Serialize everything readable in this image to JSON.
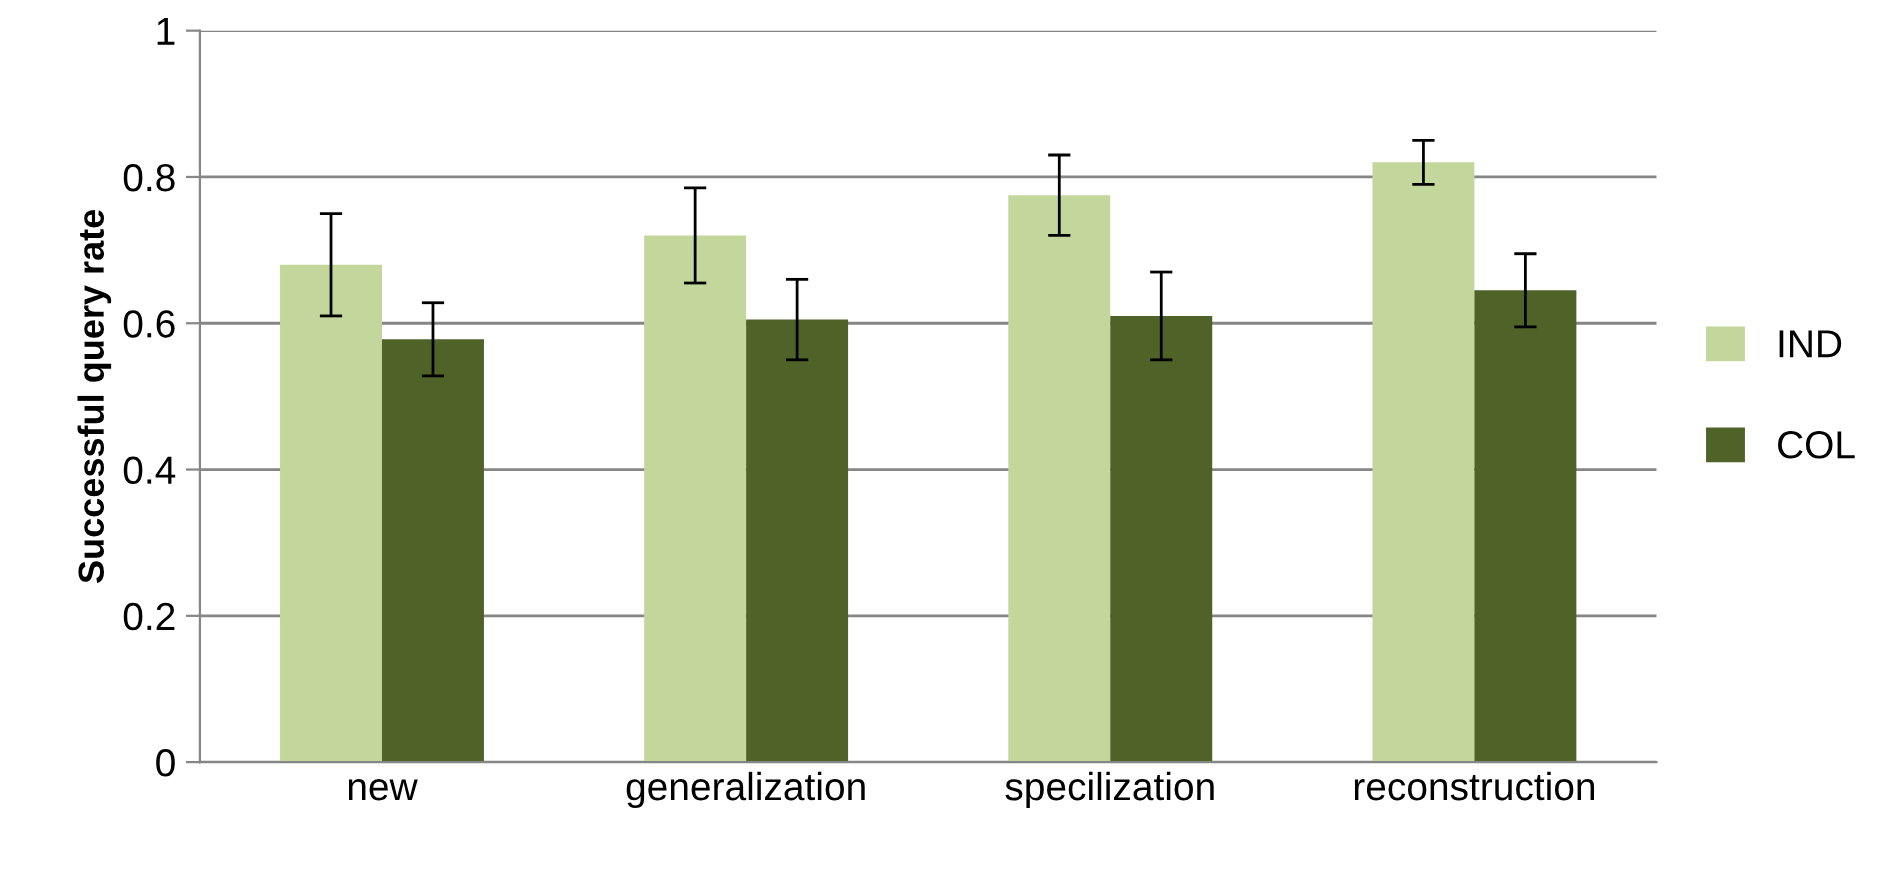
{
  "chart_data": {
    "type": "bar",
    "ylabel": "Successful query rate",
    "categories": [
      "new",
      "generalization",
      "specilization",
      "reconstruction"
    ],
    "series": [
      {
        "name": "IND",
        "color": "#c3d69b",
        "values": [
          0.68,
          0.72,
          0.775,
          0.82
        ],
        "errors": [
          0.07,
          0.065,
          0.055,
          0.03
        ]
      },
      {
        "name": "COL",
        "color": "#4f6228",
        "values": [
          0.578,
          0.605,
          0.61,
          0.645
        ],
        "errors": [
          0.05,
          0.055,
          0.06,
          0.05
        ]
      }
    ],
    "ylim": [
      0,
      1
    ],
    "yticks": [
      0,
      0.2,
      0.4,
      0.6,
      0.8,
      1
    ],
    "grid": "y",
    "legend": "right"
  }
}
